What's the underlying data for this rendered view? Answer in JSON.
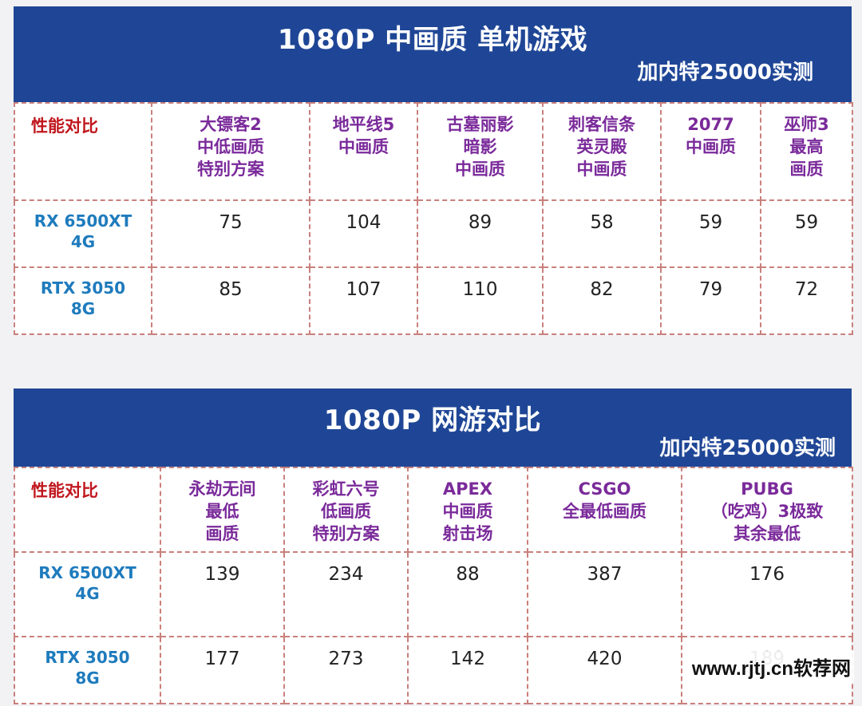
{
  "top": {
    "title": "1080P 中画质 单机游戏",
    "subtitle": "加内特25000实测",
    "corner_label": "性能对比",
    "games": [
      {
        "lines": [
          "大镖客2",
          "中低画质",
          "特别方案"
        ]
      },
      {
        "lines": [
          "地平线5",
          "中画质"
        ]
      },
      {
        "lines": [
          "古墓丽影",
          "暗影",
          "中画质"
        ]
      },
      {
        "lines": [
          "刺客信条",
          "英灵殿",
          "中画质"
        ]
      },
      {
        "lines": [
          "2077",
          "中画质"
        ]
      },
      {
        "lines": [
          "巫师3",
          "最高",
          "画质"
        ]
      }
    ],
    "rows": [
      {
        "gpu": [
          "RX 6500XT",
          "4G"
        ],
        "values": [
          "75",
          "104",
          "89",
          "58",
          "59",
          "59"
        ]
      },
      {
        "gpu": [
          "RTX 3050",
          "8G"
        ],
        "values": [
          "85",
          "107",
          "110",
          "82",
          "79",
          "72"
        ]
      }
    ]
  },
  "bottom": {
    "title": "1080P 网游对比",
    "subtitle": "加内特25000实测",
    "corner_label": "性能对比",
    "games": [
      {
        "lines": [
          "永劫无间",
          "最低",
          "画质"
        ]
      },
      {
        "lines": [
          "彩虹六号",
          "低画质",
          "特别方案"
        ]
      },
      {
        "lines": [
          "APEX",
          "中画质",
          "射击场"
        ]
      },
      {
        "lines": [
          "CSGO",
          "全最低画质"
        ]
      },
      {
        "lines": [
          "PUBG",
          "（吃鸡）3极致",
          "其余最低"
        ]
      }
    ],
    "rows": [
      {
        "gpu": [
          "RX 6500XT",
          "4G"
        ],
        "values": [
          "139",
          "234",
          "88",
          "387",
          "176"
        ]
      },
      {
        "gpu": [
          "RTX  3050",
          "8G"
        ],
        "values": [
          "177",
          "273",
          "142",
          "420",
          "189"
        ]
      }
    ]
  },
  "watermark": "www.rjtj.cn软荐网",
  "colors": {
    "banner": "#1f4696",
    "corner_label": "#c0171e",
    "game_header": "#7a2a9a",
    "gpu_label": "#1e7bbd",
    "grid": "#c9807c"
  }
}
